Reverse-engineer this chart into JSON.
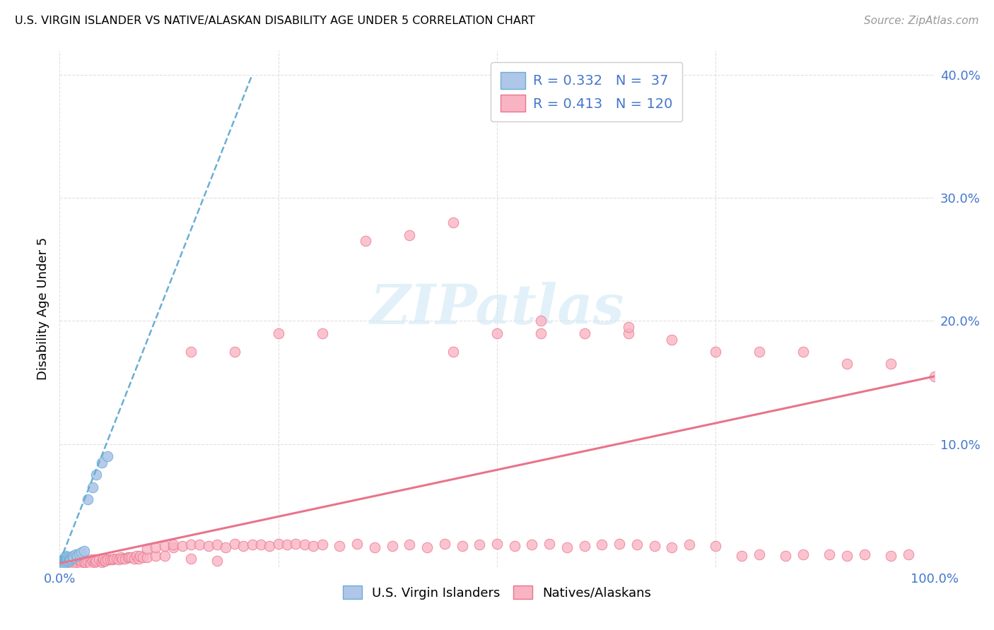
{
  "title": "U.S. VIRGIN ISLANDER VS NATIVE/ALASKAN DISABILITY AGE UNDER 5 CORRELATION CHART",
  "source": "Source: ZipAtlas.com",
  "ylabel": "Disability Age Under 5",
  "xlabel_blue": "U.S. Virgin Islanders",
  "xlabel_pink": "Natives/Alaskans",
  "legend_blue_R": "0.332",
  "legend_blue_N": "37",
  "legend_pink_R": "0.413",
  "legend_pink_N": "120",
  "xlim": [
    0.0,
    1.0
  ],
  "ylim": [
    0.0,
    0.42
  ],
  "blue_color": "#aec6e8",
  "blue_edge_color": "#6baed6",
  "blue_line_color": "#6baed6",
  "pink_color": "#f9b4c4",
  "pink_edge_color": "#e8748a",
  "pink_line_color": "#e8748a",
  "grid_color": "#dddddd",
  "tick_color": "#4477cc",
  "watermark_color": "#d0e8f5",
  "watermark_alpha": 0.6,
  "blue_x": [
    0.002,
    0.003,
    0.003,
    0.004,
    0.004,
    0.005,
    0.005,
    0.005,
    0.006,
    0.006,
    0.006,
    0.007,
    0.007,
    0.007,
    0.008,
    0.008,
    0.009,
    0.009,
    0.01,
    0.01,
    0.011,
    0.011,
    0.012,
    0.013,
    0.014,
    0.015,
    0.016,
    0.018,
    0.02,
    0.022,
    0.025,
    0.028,
    0.032,
    0.038,
    0.042,
    0.048,
    0.055
  ],
  "blue_y": [
    0.004,
    0.003,
    0.005,
    0.004,
    0.006,
    0.003,
    0.005,
    0.007,
    0.004,
    0.006,
    0.008,
    0.005,
    0.007,
    0.009,
    0.006,
    0.008,
    0.005,
    0.007,
    0.006,
    0.008,
    0.005,
    0.007,
    0.006,
    0.007,
    0.008,
    0.009,
    0.008,
    0.01,
    0.009,
    0.011,
    0.012,
    0.013,
    0.055,
    0.065,
    0.075,
    0.085,
    0.09
  ],
  "pink_x": [
    0.008,
    0.01,
    0.012,
    0.015,
    0.015,
    0.018,
    0.02,
    0.022,
    0.025,
    0.025,
    0.028,
    0.03,
    0.032,
    0.035,
    0.035,
    0.038,
    0.04,
    0.04,
    0.042,
    0.045,
    0.048,
    0.05,
    0.05,
    0.052,
    0.055,
    0.058,
    0.06,
    0.062,
    0.065,
    0.068,
    0.07,
    0.072,
    0.075,
    0.078,
    0.08,
    0.082,
    0.085,
    0.088,
    0.09,
    0.092,
    0.095,
    0.1,
    0.1,
    0.11,
    0.11,
    0.12,
    0.12,
    0.13,
    0.13,
    0.14,
    0.15,
    0.15,
    0.16,
    0.17,
    0.18,
    0.18,
    0.19,
    0.2,
    0.21,
    0.22,
    0.23,
    0.24,
    0.25,
    0.26,
    0.27,
    0.28,
    0.29,
    0.3,
    0.32,
    0.34,
    0.36,
    0.38,
    0.4,
    0.42,
    0.44,
    0.46,
    0.48,
    0.5,
    0.52,
    0.54,
    0.56,
    0.58,
    0.6,
    0.62,
    0.64,
    0.66,
    0.68,
    0.7,
    0.72,
    0.75,
    0.78,
    0.8,
    0.83,
    0.85,
    0.88,
    0.9,
    0.92,
    0.95,
    0.97,
    1.0,
    0.15,
    0.2,
    0.25,
    0.3,
    0.35,
    0.4,
    0.45,
    0.5,
    0.55,
    0.6,
    0.65,
    0.7,
    0.75,
    0.8,
    0.85,
    0.9,
    0.95,
    0.45,
    0.55,
    0.65
  ],
  "pink_y": [
    0.002,
    0.003,
    0.002,
    0.004,
    0.003,
    0.003,
    0.004,
    0.005,
    0.003,
    0.005,
    0.004,
    0.004,
    0.005,
    0.006,
    0.003,
    0.005,
    0.004,
    0.006,
    0.005,
    0.006,
    0.004,
    0.005,
    0.007,
    0.005,
    0.006,
    0.006,
    0.006,
    0.007,
    0.007,
    0.006,
    0.008,
    0.007,
    0.007,
    0.008,
    0.008,
    0.008,
    0.007,
    0.009,
    0.007,
    0.009,
    0.008,
    0.008,
    0.015,
    0.009,
    0.016,
    0.009,
    0.017,
    0.016,
    0.018,
    0.017,
    0.007,
    0.018,
    0.018,
    0.017,
    0.005,
    0.018,
    0.016,
    0.019,
    0.017,
    0.018,
    0.018,
    0.017,
    0.019,
    0.018,
    0.019,
    0.018,
    0.017,
    0.018,
    0.017,
    0.019,
    0.016,
    0.017,
    0.018,
    0.016,
    0.019,
    0.017,
    0.018,
    0.019,
    0.017,
    0.018,
    0.019,
    0.016,
    0.017,
    0.018,
    0.019,
    0.018,
    0.017,
    0.016,
    0.018,
    0.017,
    0.009,
    0.01,
    0.009,
    0.01,
    0.01,
    0.009,
    0.01,
    0.009,
    0.01,
    0.155,
    0.175,
    0.175,
    0.19,
    0.19,
    0.265,
    0.27,
    0.28,
    0.19,
    0.2,
    0.19,
    0.19,
    0.185,
    0.175,
    0.175,
    0.175,
    0.165,
    0.165,
    0.175,
    0.19,
    0.195
  ],
  "blue_line_x0": 0.0,
  "blue_line_x1": 0.22,
  "blue_line_y0": 0.004,
  "blue_line_y1": 0.4,
  "pink_line_x0": 0.0,
  "pink_line_x1": 1.0,
  "pink_line_y0": 0.003,
  "pink_line_y1": 0.155
}
